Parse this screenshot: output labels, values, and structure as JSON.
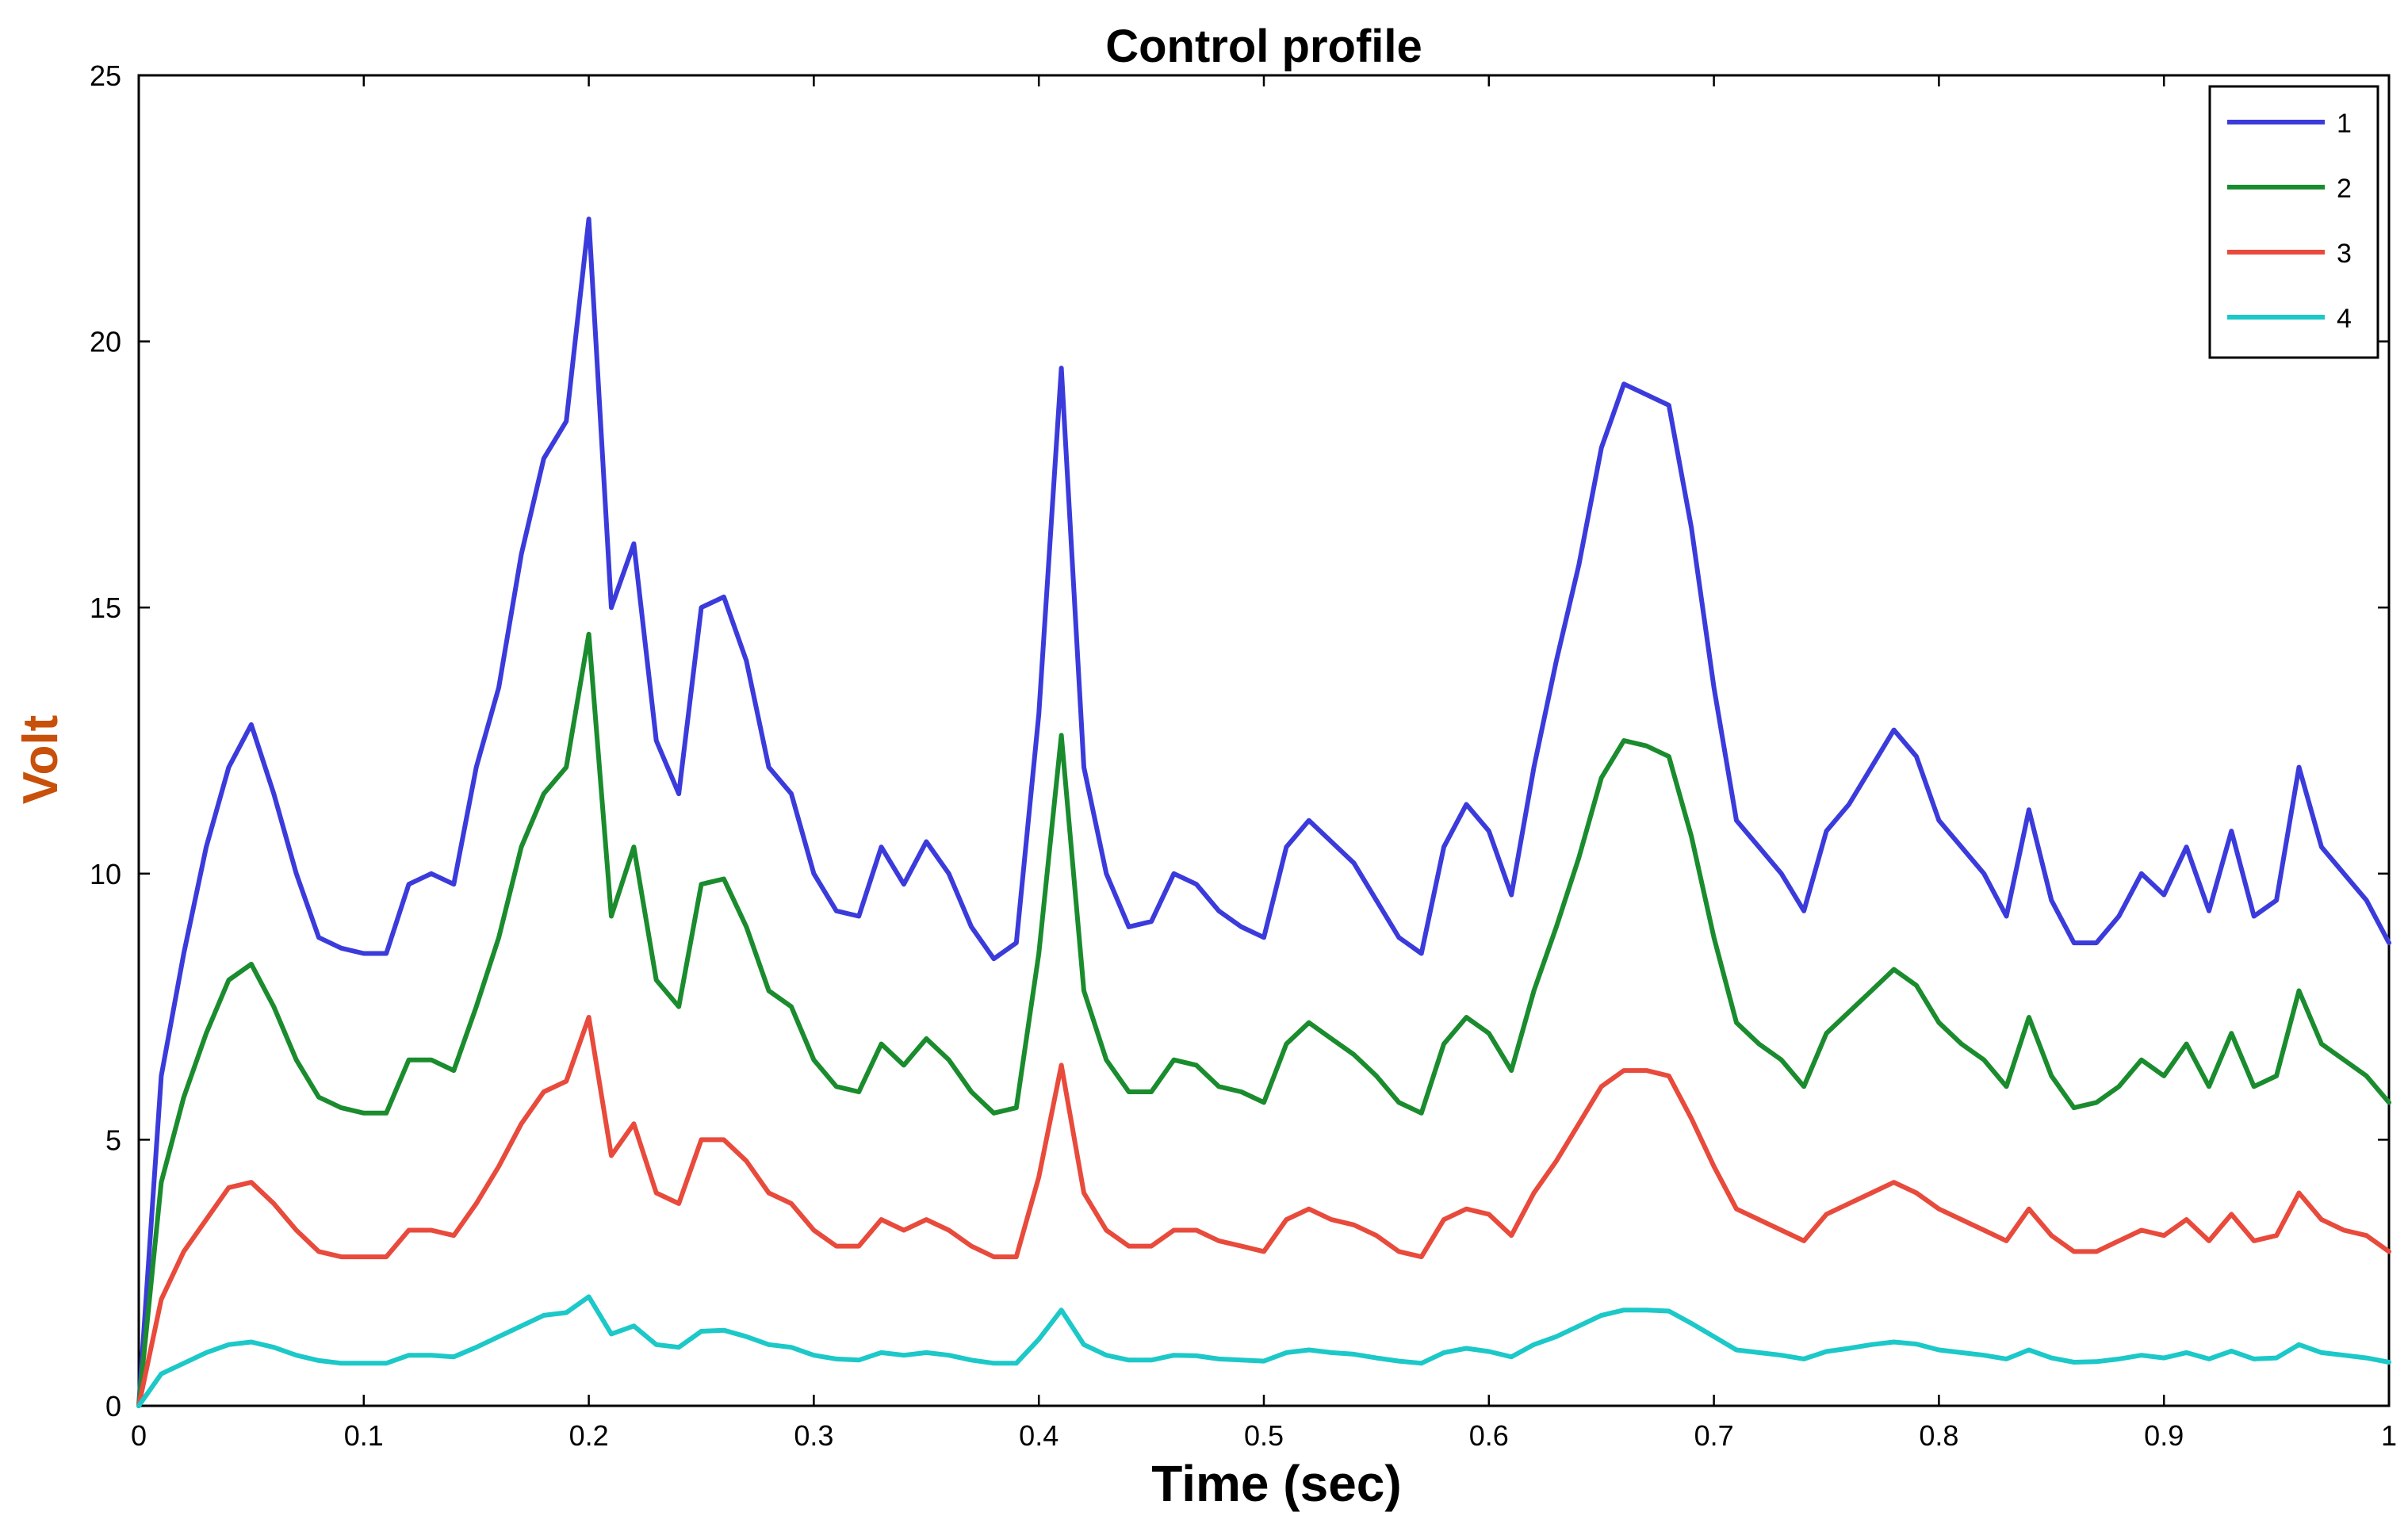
{
  "chart_data": {
    "type": "line",
    "title": "Control profile",
    "xlabel": "Time (sec)",
    "ylabel": "Volt",
    "xlim": [
      0,
      1
    ],
    "ylim": [
      0,
      25
    ],
    "xticks": [
      0,
      0.1,
      0.2,
      0.3,
      0.4,
      0.5,
      0.6,
      0.7,
      0.8,
      0.9,
      1
    ],
    "xtick_labels": [
      "0",
      "0.1",
      "0.2",
      "0.3",
      "0.4",
      "0.5",
      "0.6",
      "0.7",
      "0.8",
      "0.9",
      "1"
    ],
    "yticks": [
      0,
      5,
      10,
      15,
      20,
      25
    ],
    "ytick_labels": [
      "0",
      "5",
      "10",
      "15",
      "20",
      "25"
    ],
    "grid": false,
    "legend_position": "top-right",
    "x": [
      0,
      0.01,
      0.02,
      0.03,
      0.04,
      0.05,
      0.06,
      0.07,
      0.08,
      0.09,
      0.1,
      0.11,
      0.12,
      0.13,
      0.14,
      0.15,
      0.16,
      0.17,
      0.18,
      0.19,
      0.2,
      0.21,
      0.22,
      0.23,
      0.24,
      0.25,
      0.26,
      0.27,
      0.28,
      0.29,
      0.3,
      0.31,
      0.32,
      0.33,
      0.34,
      0.35,
      0.36,
      0.37,
      0.38,
      0.39,
      0.4,
      0.41,
      0.42,
      0.43,
      0.44,
      0.45,
      0.46,
      0.47,
      0.48,
      0.49,
      0.5,
      0.51,
      0.52,
      0.53,
      0.54,
      0.55,
      0.56,
      0.57,
      0.58,
      0.59,
      0.6,
      0.61,
      0.62,
      0.63,
      0.64,
      0.65,
      0.66,
      0.67,
      0.68,
      0.69,
      0.7,
      0.71,
      0.72,
      0.73,
      0.74,
      0.75,
      0.76,
      0.77,
      0.78,
      0.79,
      0.8,
      0.81,
      0.82,
      0.83,
      0.84,
      0.85,
      0.86,
      0.87,
      0.88,
      0.89,
      0.9,
      0.91,
      0.92,
      0.93,
      0.94,
      0.95,
      0.96,
      0.97,
      0.98,
      0.99,
      1.0
    ],
    "series": [
      {
        "name": "1",
        "color": "#3b3bdc",
        "values": [
          0,
          6.2,
          8.5,
          10.5,
          12.0,
          12.8,
          11.5,
          10.0,
          8.8,
          8.6,
          8.5,
          8.5,
          9.8,
          10.0,
          9.8,
          12.0,
          13.5,
          16.0,
          17.8,
          18.5,
          22.3,
          15.0,
          16.2,
          12.5,
          11.5,
          15.0,
          15.2,
          14.0,
          12.0,
          11.5,
          10.0,
          9.3,
          9.2,
          10.5,
          9.8,
          10.6,
          10.0,
          9.0,
          8.4,
          8.7,
          13.0,
          19.5,
          12.0,
          10.0,
          9.0,
          9.1,
          10.0,
          9.8,
          9.3,
          9.0,
          8.8,
          10.5,
          11.0,
          10.6,
          10.2,
          9.5,
          8.8,
          8.5,
          10.5,
          11.3,
          10.8,
          9.6,
          12.0,
          14.0,
          15.8,
          18.0,
          19.2,
          19.0,
          18.8,
          16.5,
          13.5,
          11.0,
          10.5,
          10.0,
          9.3,
          10.8,
          11.3,
          12.0,
          12.7,
          12.2,
          11.0,
          10.5,
          10.0,
          9.2,
          11.2,
          9.5,
          8.7,
          8.7,
          9.2,
          10.0,
          9.6,
          10.5,
          9.3,
          10.8,
          9.2,
          9.5,
          12.0,
          10.5,
          10.0,
          9.5,
          8.7
        ]
      },
      {
        "name": "2",
        "color": "#1a8c2e",
        "values": [
          0,
          4.2,
          5.8,
          7.0,
          8.0,
          8.3,
          7.5,
          6.5,
          5.8,
          5.6,
          5.5,
          5.5,
          6.5,
          6.5,
          6.3,
          7.5,
          8.8,
          10.5,
          11.5,
          12.0,
          14.5,
          9.2,
          10.5,
          8.0,
          7.5,
          9.8,
          9.9,
          9.0,
          7.8,
          7.5,
          6.5,
          6.0,
          5.9,
          6.8,
          6.4,
          6.9,
          6.5,
          5.9,
          5.5,
          5.6,
          8.5,
          12.6,
          7.8,
          6.5,
          5.9,
          5.9,
          6.5,
          6.4,
          6.0,
          5.9,
          5.7,
          6.8,
          7.2,
          6.9,
          6.6,
          6.2,
          5.7,
          5.5,
          6.8,
          7.3,
          7.0,
          6.3,
          7.8,
          9.0,
          10.3,
          11.8,
          12.5,
          12.4,
          12.2,
          10.7,
          8.8,
          7.2,
          6.8,
          6.5,
          6.0,
          7.0,
          7.4,
          7.8,
          8.2,
          7.9,
          7.2,
          6.8,
          6.5,
          6.0,
          7.3,
          6.2,
          5.6,
          5.7,
          6.0,
          6.5,
          6.2,
          6.8,
          6.0,
          7.0,
          6.0,
          6.2,
          7.8,
          6.8,
          6.5,
          6.2,
          5.7
        ]
      },
      {
        "name": "3",
        "color": "#e84a3c",
        "values": [
          0,
          2.0,
          2.9,
          3.5,
          4.1,
          4.2,
          3.8,
          3.3,
          2.9,
          2.8,
          2.8,
          2.8,
          3.3,
          3.3,
          3.2,
          3.8,
          4.5,
          5.3,
          5.9,
          6.1,
          7.3,
          4.7,
          5.3,
          4.0,
          3.8,
          5.0,
          5.0,
          4.6,
          4.0,
          3.8,
          3.3,
          3.0,
          3.0,
          3.5,
          3.3,
          3.5,
          3.3,
          3.0,
          2.8,
          2.8,
          4.3,
          6.4,
          4.0,
          3.3,
          3.0,
          3.0,
          3.3,
          3.3,
          3.1,
          3.0,
          2.9,
          3.5,
          3.7,
          3.5,
          3.4,
          3.2,
          2.9,
          2.8,
          3.5,
          3.7,
          3.6,
          3.2,
          4.0,
          4.6,
          5.3,
          6.0,
          6.3,
          6.3,
          6.2,
          5.4,
          4.5,
          3.7,
          3.5,
          3.3,
          3.1,
          3.6,
          3.8,
          4.0,
          4.2,
          4.0,
          3.7,
          3.5,
          3.3,
          3.1,
          3.7,
          3.2,
          2.9,
          2.9,
          3.1,
          3.3,
          3.2,
          3.5,
          3.1,
          3.6,
          3.1,
          3.2,
          4.0,
          3.5,
          3.3,
          3.2,
          2.9
        ]
      },
      {
        "name": "4",
        "color": "#1cc8c8",
        "values": [
          0,
          0.6,
          0.8,
          1.0,
          1.15,
          1.2,
          1.1,
          0.95,
          0.85,
          0.8,
          0.8,
          0.8,
          0.95,
          0.95,
          0.92,
          1.1,
          1.3,
          1.5,
          1.7,
          1.75,
          2.05,
          1.35,
          1.5,
          1.15,
          1.1,
          1.4,
          1.42,
          1.3,
          1.15,
          1.1,
          0.95,
          0.88,
          0.86,
          1.0,
          0.95,
          1.0,
          0.95,
          0.86,
          0.8,
          0.8,
          1.25,
          1.8,
          1.15,
          0.95,
          0.86,
          0.86,
          0.95,
          0.94,
          0.88,
          0.86,
          0.84,
          1.0,
          1.05,
          1.0,
          0.97,
          0.9,
          0.84,
          0.8,
          1.0,
          1.08,
          1.02,
          0.92,
          1.15,
          1.3,
          1.5,
          1.7,
          1.8,
          1.8,
          1.78,
          1.55,
          1.3,
          1.05,
          1.0,
          0.95,
          0.88,
          1.02,
          1.08,
          1.15,
          1.2,
          1.16,
          1.05,
          1.0,
          0.95,
          0.88,
          1.05,
          0.9,
          0.82,
          0.83,
          0.88,
          0.95,
          0.9,
          1.0,
          0.88,
          1.03,
          0.88,
          0.9,
          1.15,
          1.0,
          0.95,
          0.9,
          0.82
        ]
      }
    ]
  }
}
